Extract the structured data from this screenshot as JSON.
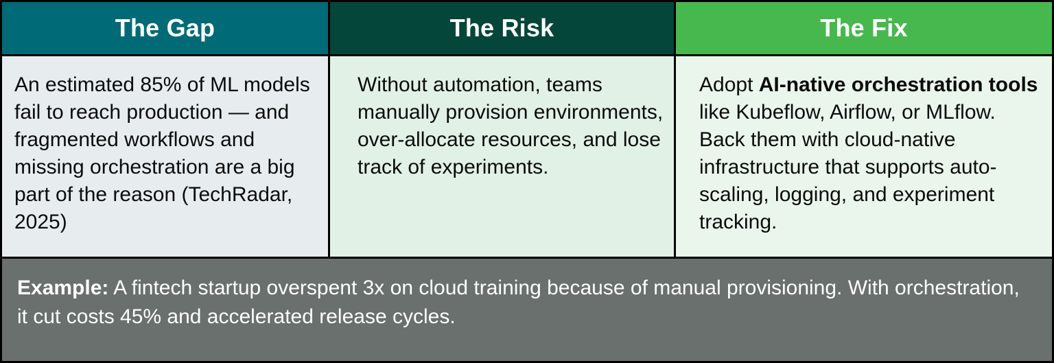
{
  "table": {
    "columns": [
      {
        "id": "gap",
        "header": "The Gap",
        "header_bg": "#006a76",
        "body_bg": "#e7edee",
        "body_segments": [
          {
            "text": "An estimated 85% of ML models fail to reach production — and fragmented workflows and missing orchestration are a big part of the reason (TechRadar, 2025)",
            "bold": false
          }
        ]
      },
      {
        "id": "risk",
        "header": "The Risk",
        "header_bg": "#05463a",
        "body_bg": "#e2f1e6",
        "body_segments": [
          {
            "text": "Without automation, teams manually provision environments, over-allocate resources, and lose track of experiments.",
            "bold": false
          }
        ]
      },
      {
        "id": "fix",
        "header": "The Fix",
        "header_bg": "#47b84e",
        "body_bg": "#eaf6ec",
        "body_segments": [
          {
            "text": "Adopt ",
            "bold": false
          },
          {
            "text": "AI-native orchestration tools",
            "bold": true
          },
          {
            "text": " like Kubeflow, Airflow, or MLflow. Back them with cloud-native infrastructure that supports auto-scaling, logging, and experiment tracking.",
            "bold": false
          }
        ]
      }
    ],
    "footer": {
      "bg": "#69706e",
      "text_color": "#ffffff",
      "segments": [
        {
          "text": "Example:",
          "bold": true
        },
        {
          "text": " A fintech startup overspent 3x on cloud training because of manual provisioning. With orchestration, it cut costs 45% and accelerated release cycles.",
          "bold": false
        }
      ]
    },
    "colors": {
      "border": "#000000",
      "header_text": "#ffffff",
      "body_text": "#0b0b0b"
    }
  }
}
